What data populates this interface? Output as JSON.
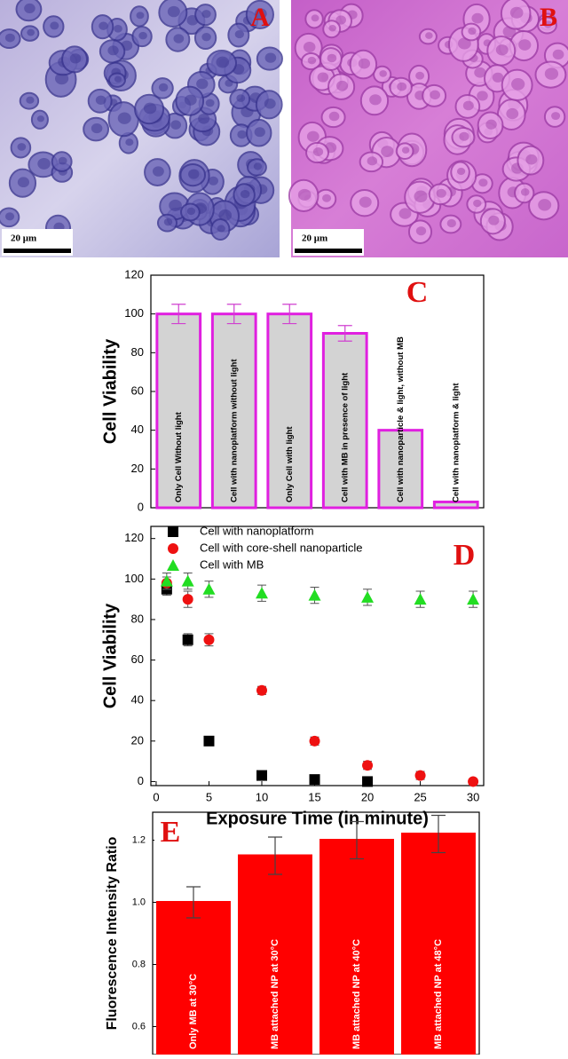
{
  "images": [
    {
      "label": "A",
      "scale": "20 μm"
    },
    {
      "label": "B",
      "scale": "20 μm"
    }
  ],
  "chart_data": [
    {
      "type": "bar",
      "letter": "C",
      "y_label": "Cell Viability",
      "categories": [
        "Only Cell Without light",
        "Cell with nanoplatform without light",
        "Only Cell with light",
        "Cell with MB in presence of light",
        "Cell with nanoparticle & light, without MB",
        "Cell with nanoplatform & light"
      ],
      "values": [
        100,
        100,
        100,
        90,
        40,
        3
      ],
      "errors": [
        5,
        5,
        5,
        4,
        0,
        0
      ],
      "color": "#d3d3d3",
      "edge_color": "#e020e0",
      "ylim": [
        0,
        120
      ],
      "yticks": [
        0,
        20,
        40,
        60,
        80,
        100,
        120
      ]
    },
    {
      "type": "scatter",
      "letter": "D",
      "y_label": "Cell Viability",
      "x_label": "Exposure Time (in minute)",
      "xlim": [
        -0.5,
        31
      ],
      "xticks": [
        0,
        5,
        10,
        15,
        20,
        25,
        30
      ],
      "ylim": [
        -2,
        126
      ],
      "yticks": [
        0,
        20,
        40,
        60,
        80,
        100,
        120
      ],
      "series": [
        {
          "name": "Cell with nanoplatform",
          "color": "#000000",
          "marker": "square",
          "x": [
            1,
            3,
            5,
            10,
            15,
            20
          ],
          "values": [
            95,
            70,
            20,
            3,
            1,
            0
          ],
          "errors": [
            3,
            3,
            2,
            1,
            1,
            1
          ]
        },
        {
          "name": "Cell with core-shell nanoparticle",
          "color": "#ee1111",
          "marker": "circle",
          "x": [
            1,
            3,
            5,
            10,
            15,
            20,
            25,
            30
          ],
          "values": [
            98,
            90,
            70,
            45,
            20,
            8,
            3,
            0
          ],
          "errors": [
            3,
            4,
            3,
            2,
            2,
            2,
            2,
            1
          ]
        },
        {
          "name": "Cell with MB",
          "color": "#22dd22",
          "marker": "triangle",
          "x": [
            1,
            3,
            5,
            10,
            15,
            20,
            25,
            30
          ],
          "values": [
            99,
            99,
            95,
            93,
            92,
            91,
            90,
            90
          ],
          "errors": [
            4,
            4,
            4,
            4,
            4,
            4,
            4,
            4
          ]
        }
      ]
    },
    {
      "type": "bar",
      "letter": "E",
      "y_label": "Fluorescence Intensity Ratio",
      "categories": [
        "Only MB at 30°C",
        "MB attached NP at 30°C",
        "MB attached NP at 40°C",
        "MB attached NP at 48°C"
      ],
      "values": [
        1.0,
        1.15,
        1.2,
        1.22
      ],
      "errors": [
        0.05,
        0.06,
        0.06,
        0.06
      ],
      "color": "#ff0000",
      "edge_color": "#ff0000",
      "label_color": "#ffffff",
      "ylim": [
        0.51,
        1.29
      ],
      "yticks": [
        0.6,
        0.8,
        {
          "value": 1.0,
          "label": "1.0"
        },
        1.2
      ]
    }
  ]
}
